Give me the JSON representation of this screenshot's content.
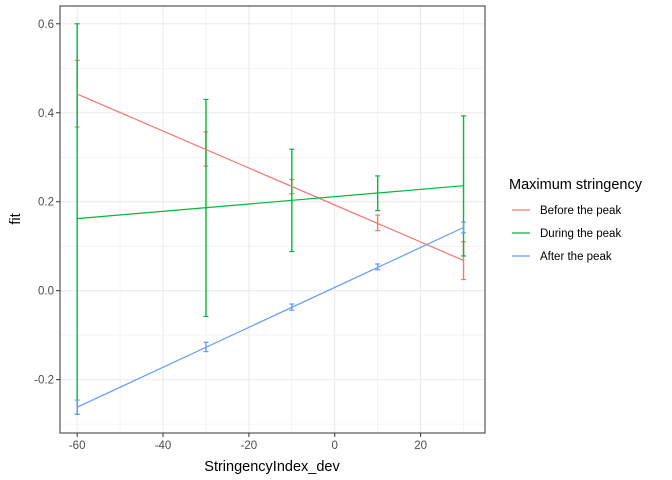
{
  "chart_data": {
    "type": "line",
    "xlabel": "StringencyIndex_dev",
    "ylabel": "fit",
    "xlim": [
      -64,
      35
    ],
    "ylim": [
      -0.32,
      0.64
    ],
    "x_ticks": [
      -60,
      -40,
      -20,
      0,
      20
    ],
    "x_tick_labels": [
      "-60",
      "-40",
      "-20",
      "0",
      "20"
    ],
    "y_ticks": [
      -0.2,
      0.0,
      0.2,
      0.4,
      0.6
    ],
    "y_tick_labels": [
      "-0.2",
      "0.0",
      "0.2",
      "0.4",
      "0.6"
    ],
    "grid": true,
    "legend": {
      "title": "Maximum stringency",
      "position": "right"
    },
    "series": [
      {
        "name": "Before the peak",
        "color": "#F8766D",
        "line": {
          "x": [
            -60,
            30
          ],
          "y": [
            0.442,
            0.068
          ]
        },
        "points": [
          {
            "x": -60,
            "y": 0.442,
            "lower": 0.368,
            "upper": 0.518
          },
          {
            "x": -30,
            "y": 0.318,
            "lower": 0.28,
            "upper": 0.357
          },
          {
            "x": -10,
            "y": 0.234,
            "lower": 0.218,
            "upper": 0.25
          },
          {
            "x": 10,
            "y": 0.152,
            "lower": 0.135,
            "upper": 0.17
          },
          {
            "x": 30,
            "y": 0.068,
            "lower": 0.025,
            "upper": 0.11
          }
        ]
      },
      {
        "name": "During the peak",
        "color": "#00BA38",
        "line": {
          "x": [
            -60,
            30
          ],
          "y": [
            0.162,
            0.236
          ]
        },
        "points": [
          {
            "x": -60,
            "y": 0.162,
            "lower": -0.278,
            "upper": 0.6
          },
          {
            "x": -30,
            "y": 0.186,
            "lower": -0.058,
            "upper": 0.43
          },
          {
            "x": -10,
            "y": 0.203,
            "lower": 0.088,
            "upper": 0.318
          },
          {
            "x": 10,
            "y": 0.219,
            "lower": 0.18,
            "upper": 0.258
          },
          {
            "x": 30,
            "y": 0.236,
            "lower": 0.078,
            "upper": 0.393
          }
        ]
      },
      {
        "name": "After the peak",
        "color": "#619CFF",
        "line": {
          "x": [
            -60,
            30
          ],
          "y": [
            -0.262,
            0.142
          ]
        },
        "points": [
          {
            "x": -60,
            "y": -0.262,
            "lower": -0.278,
            "upper": -0.246
          },
          {
            "x": -30,
            "y": -0.127,
            "lower": -0.137,
            "upper": -0.116
          },
          {
            "x": -10,
            "y": -0.037,
            "lower": -0.044,
            "upper": -0.03
          },
          {
            "x": 10,
            "y": 0.053,
            "lower": 0.047,
            "upper": 0.06
          },
          {
            "x": 30,
            "y": 0.142,
            "lower": 0.13,
            "upper": 0.154
          }
        ]
      }
    ]
  }
}
